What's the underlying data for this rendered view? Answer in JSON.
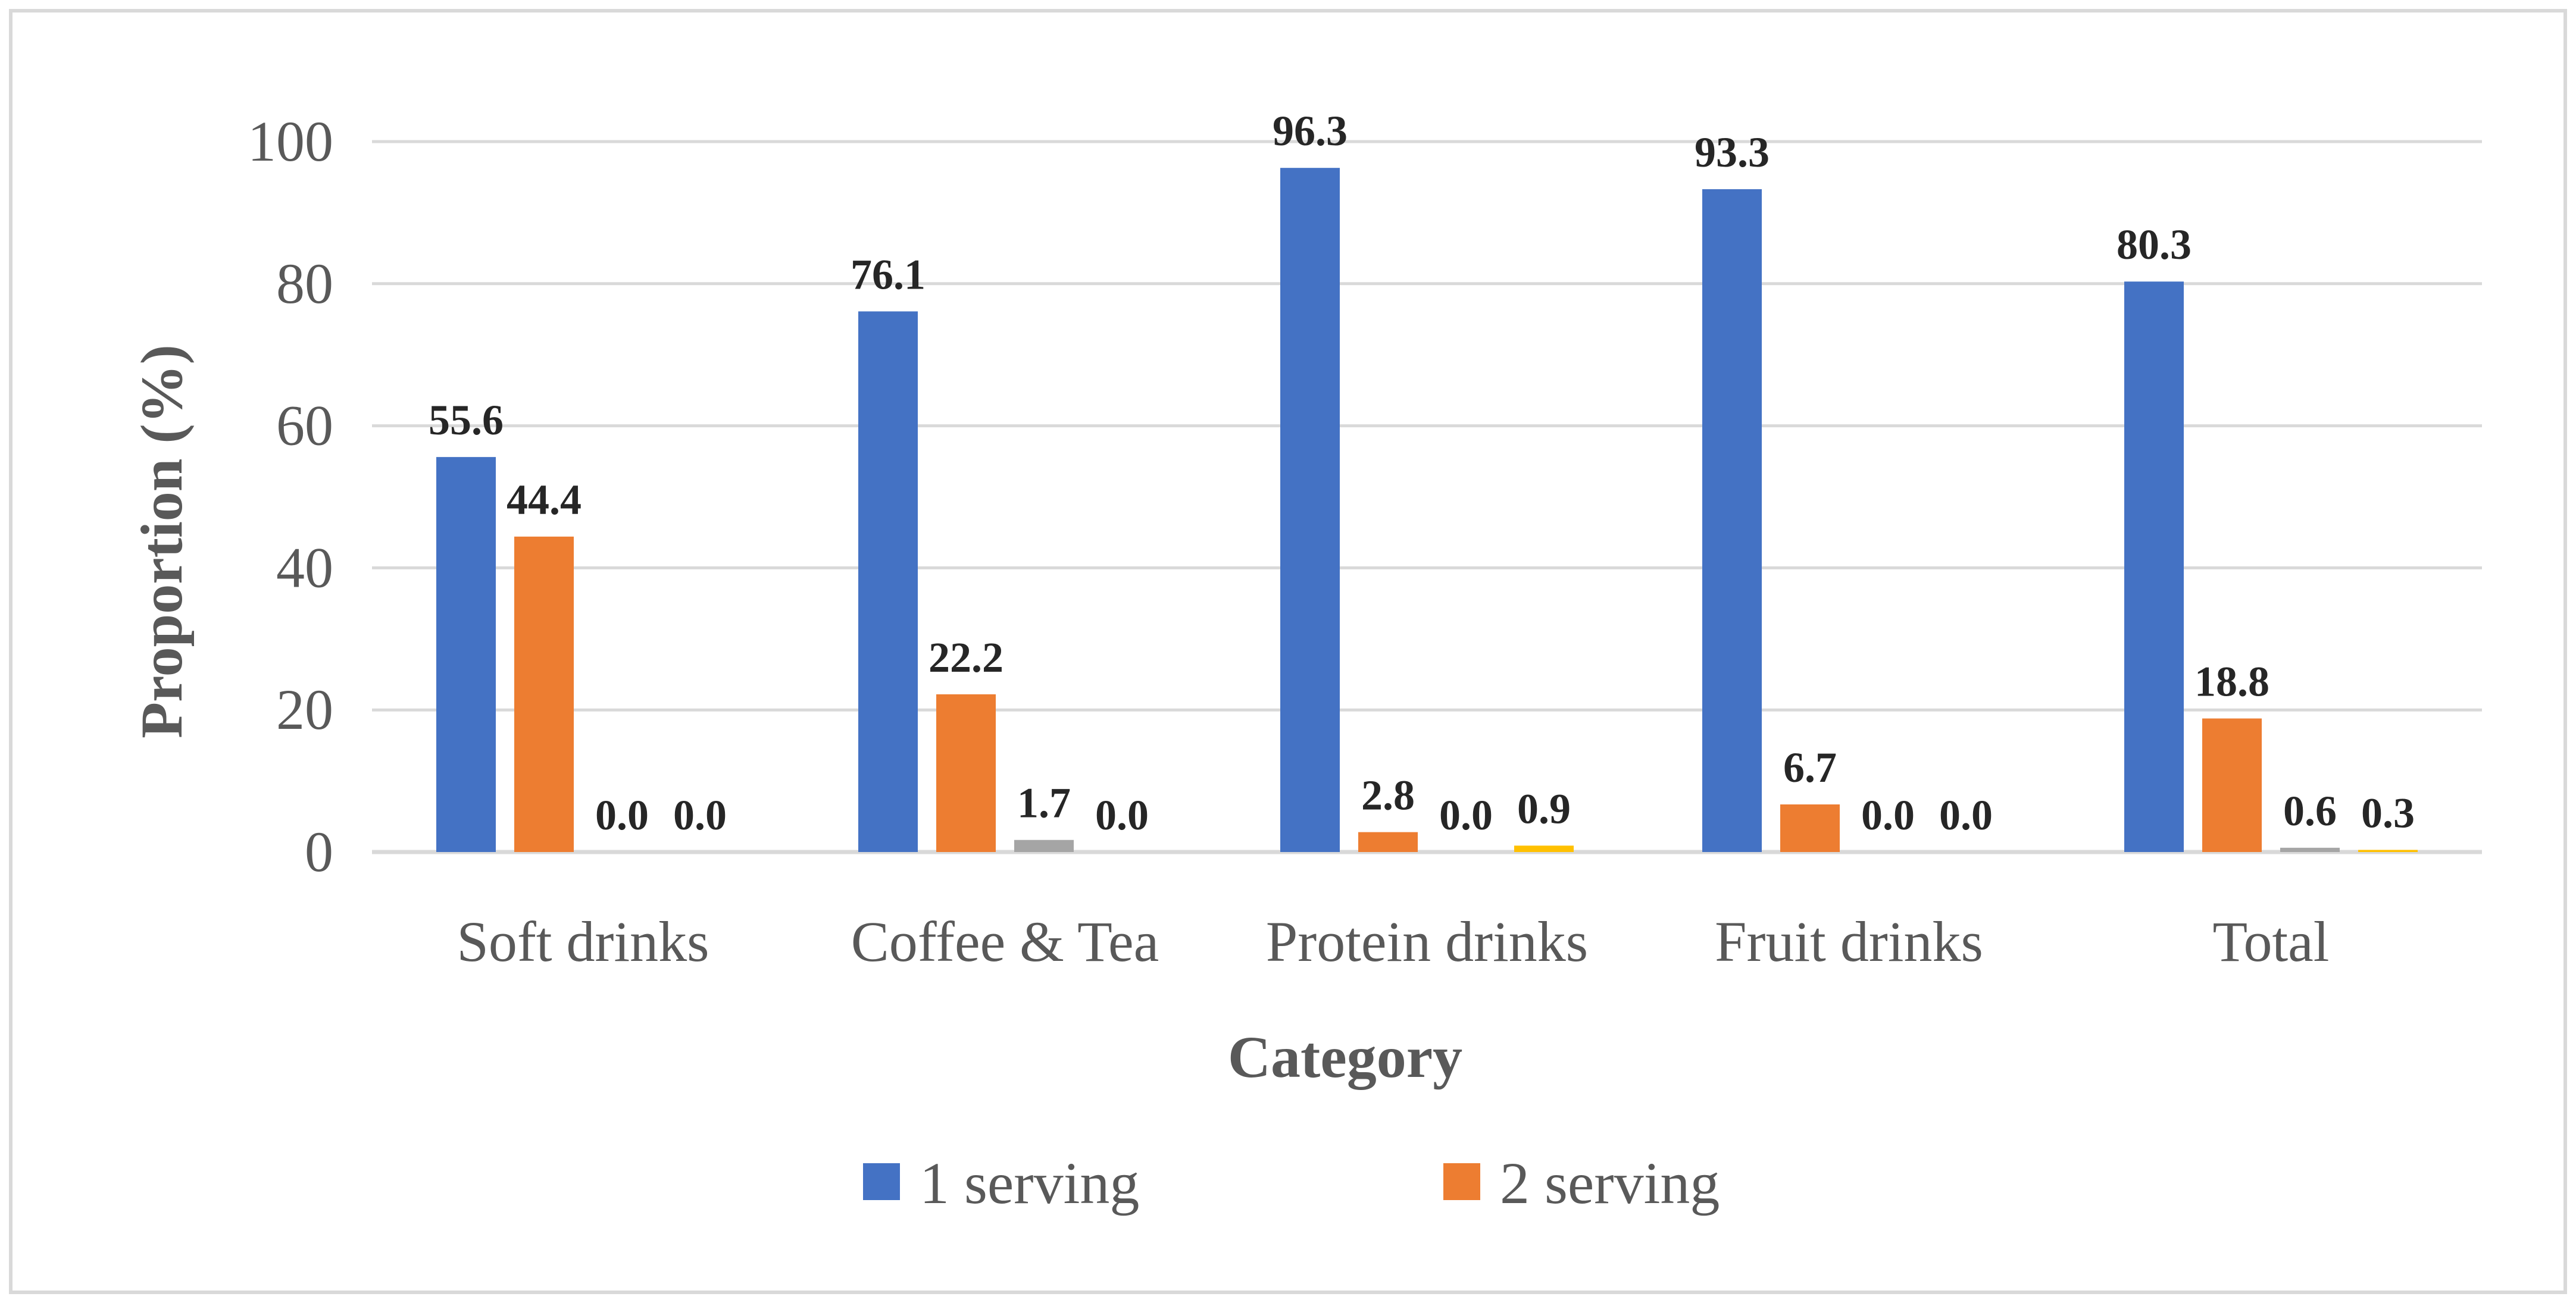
{
  "chart_data": {
    "type": "bar",
    "title": "",
    "xlabel": "Category",
    "ylabel": "Proportion (%)",
    "ylim": [
      0,
      100
    ],
    "yticks": [
      0,
      20,
      40,
      60,
      80,
      100
    ],
    "grid": true,
    "legend_position": "bottom",
    "categories": [
      "Soft drinks",
      "Coffee & Tea",
      "Protein drinks",
      "Fruit drinks",
      "Total"
    ],
    "series": [
      {
        "name": "1 serving",
        "color": "#4472C4",
        "values": [
          55.6,
          76.1,
          96.3,
          93.3,
          80.3
        ],
        "labels": [
          "55.6",
          "76.1",
          "96.3",
          "93.3",
          "80.3"
        ],
        "in_legend": true
      },
      {
        "name": "2 serving",
        "color": "#ED7D31",
        "values": [
          44.4,
          22.2,
          2.8,
          6.7,
          18.8
        ],
        "labels": [
          "44.4",
          "22.2",
          "2.8",
          "6.7",
          "18.8"
        ],
        "in_legend": true
      },
      {
        "name": "",
        "color": "#A5A5A5",
        "values": [
          0.0,
          1.7,
          0.0,
          0.0,
          0.6
        ],
        "labels": [
          "0.0",
          "1.7",
          "0.0",
          "0.0",
          "0.6"
        ],
        "in_legend": false
      },
      {
        "name": "",
        "color": "#FFC000",
        "values": [
          0.0,
          0.0,
          0.9,
          0.0,
          0.3
        ],
        "labels": [
          "0.0",
          "0.0",
          "0.9",
          "0.0",
          "0.3"
        ],
        "in_legend": false
      }
    ]
  }
}
